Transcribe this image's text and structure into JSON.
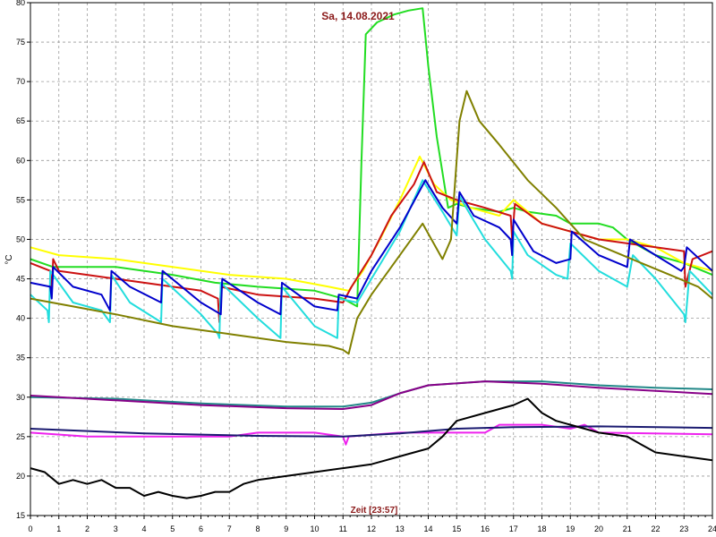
{
  "chart_data": {
    "type": "line",
    "title": "Sa, 14.08.2021",
    "xlabel": "Zeit [23:57]",
    "ylabel": "°C",
    "xlim": [
      0,
      24
    ],
    "ylim": [
      15,
      80
    ],
    "x_ticks": [
      "0",
      "1",
      "2",
      "3",
      "4",
      "5",
      "6",
      "7",
      "8",
      "9",
      "10",
      "11",
      "12",
      "13",
      "14",
      "15",
      "16",
      "17",
      "18",
      "19",
      "20",
      "21",
      "22",
      "23",
      "24"
    ],
    "y_ticks": [
      "15",
      "20",
      "25",
      "30",
      "35",
      "40",
      "45",
      "50",
      "55",
      "60",
      "65",
      "70",
      "75",
      "80"
    ],
    "grid": true,
    "series": [
      {
        "color": "#22dd22",
        "points": [
          [
            0,
            47.5
          ],
          [
            0.8,
            46.5
          ],
          [
            3,
            46.5
          ],
          [
            5,
            45.5
          ],
          [
            6.5,
            44.5
          ],
          [
            8,
            44
          ],
          [
            10,
            43.5
          ],
          [
            11,
            42.5
          ],
          [
            11.5,
            41.5
          ],
          [
            11.65,
            60
          ],
          [
            11.8,
            76
          ],
          [
            12.2,
            77.5
          ],
          [
            12.8,
            78.5
          ],
          [
            13.3,
            79
          ],
          [
            13.8,
            79.3
          ],
          [
            14,
            72
          ],
          [
            14.3,
            63
          ],
          [
            14.7,
            54
          ],
          [
            15,
            54.5
          ],
          [
            15.5,
            54
          ],
          [
            16.5,
            53.5
          ],
          [
            17,
            54
          ],
          [
            17.5,
            53.5
          ],
          [
            18.5,
            53
          ],
          [
            19,
            52
          ],
          [
            20,
            52
          ],
          [
            20.5,
            51.5
          ],
          [
            21,
            50
          ],
          [
            22,
            48
          ],
          [
            23,
            47
          ],
          [
            24,
            45.5
          ]
        ]
      },
      {
        "color": "#ffff00",
        "points": [
          [
            0,
            49
          ],
          [
            1,
            48
          ],
          [
            3,
            47.5
          ],
          [
            5,
            46.5
          ],
          [
            7,
            45.5
          ],
          [
            9,
            45
          ],
          [
            10.5,
            44
          ],
          [
            11.2,
            43.5
          ],
          [
            11.7,
            46
          ],
          [
            12.3,
            50
          ],
          [
            13,
            55
          ],
          [
            13.7,
            60.5
          ],
          [
            14.2,
            57
          ],
          [
            14.8,
            55
          ],
          [
            15.5,
            54
          ],
          [
            16.5,
            53
          ],
          [
            17,
            55
          ],
          [
            18,
            52
          ],
          [
            19,
            51
          ],
          [
            20,
            50
          ],
          [
            21,
            50
          ],
          [
            22,
            49
          ],
          [
            23,
            47
          ],
          [
            24,
            46
          ]
        ]
      },
      {
        "color": "#cc1111",
        "points": [
          [
            0,
            47
          ],
          [
            0.7,
            46
          ],
          [
            0.75,
            43
          ],
          [
            0.8,
            47.5
          ],
          [
            1,
            46
          ],
          [
            2,
            45.5
          ],
          [
            4,
            44.5
          ],
          [
            6,
            43.5
          ],
          [
            6.6,
            42.5
          ],
          [
            6.65,
            39.5
          ],
          [
            6.7,
            44
          ],
          [
            8,
            43
          ],
          [
            10,
            42.5
          ],
          [
            11,
            42
          ],
          [
            11.3,
            44
          ],
          [
            12,
            48
          ],
          [
            12.7,
            53
          ],
          [
            13.5,
            57
          ],
          [
            13.85,
            59.8
          ],
          [
            14.3,
            56
          ],
          [
            15,
            55
          ],
          [
            16,
            54
          ],
          [
            16.9,
            53
          ],
          [
            16.95,
            50
          ],
          [
            17.05,
            54.5
          ],
          [
            18,
            52
          ],
          [
            19,
            51
          ],
          [
            20,
            50
          ],
          [
            21,
            49.5
          ],
          [
            22,
            49
          ],
          [
            23,
            48.5
          ],
          [
            23.05,
            44
          ],
          [
            23.3,
            47.5
          ],
          [
            24,
            48.5
          ]
        ]
      },
      {
        "color": "#22dddd",
        "points": [
          [
            0,
            43
          ],
          [
            0.6,
            41
          ],
          [
            0.65,
            39.5
          ],
          [
            0.7,
            46
          ],
          [
            1.5,
            42
          ],
          [
            2.5,
            41
          ],
          [
            2.8,
            39.5
          ],
          [
            2.85,
            45.5
          ],
          [
            3.5,
            42
          ],
          [
            4.6,
            39.5
          ],
          [
            4.65,
            45
          ],
          [
            6,
            40.5
          ],
          [
            6.6,
            38
          ],
          [
            6.65,
            37.5
          ],
          [
            6.7,
            44.5
          ],
          [
            8,
            40
          ],
          [
            8.8,
            37.5
          ],
          [
            8.85,
            44
          ],
          [
            10,
            39
          ],
          [
            10.8,
            37.5
          ],
          [
            10.85,
            42.5
          ],
          [
            11.5,
            42
          ],
          [
            12,
            45
          ],
          [
            13,
            51
          ],
          [
            13.8,
            57.5
          ],
          [
            14.5,
            53.5
          ],
          [
            15,
            50.5
          ],
          [
            15.1,
            55.5
          ],
          [
            15.5,
            53
          ],
          [
            16,
            50
          ],
          [
            16.9,
            46
          ],
          [
            16.95,
            45
          ],
          [
            17,
            51
          ],
          [
            17.5,
            48
          ],
          [
            18.5,
            45.5
          ],
          [
            18.9,
            45
          ],
          [
            19,
            49.5
          ],
          [
            20,
            46
          ],
          [
            21,
            44
          ],
          [
            21.2,
            48
          ],
          [
            22,
            45
          ],
          [
            23,
            40.5
          ],
          [
            23.05,
            39.5
          ],
          [
            23.2,
            46
          ],
          [
            24,
            43
          ]
        ]
      },
      {
        "color": "#0000cc",
        "points": [
          [
            0,
            44.5
          ],
          [
            0.7,
            44
          ],
          [
            0.75,
            42.5
          ],
          [
            0.8,
            46.5
          ],
          [
            1.5,
            44
          ],
          [
            2.5,
            43
          ],
          [
            2.8,
            41
          ],
          [
            2.85,
            46
          ],
          [
            3.5,
            44
          ],
          [
            4.6,
            42
          ],
          [
            4.65,
            46
          ],
          [
            6,
            42
          ],
          [
            6.7,
            40.5
          ],
          [
            6.75,
            45
          ],
          [
            8,
            42
          ],
          [
            8.8,
            40.5
          ],
          [
            8.85,
            44.5
          ],
          [
            10,
            41.5
          ],
          [
            10.8,
            41
          ],
          [
            10.85,
            43
          ],
          [
            11.5,
            42.5
          ],
          [
            12,
            46
          ],
          [
            13,
            51.5
          ],
          [
            13.9,
            57.5
          ],
          [
            14.5,
            54
          ],
          [
            15,
            52
          ],
          [
            15.1,
            56
          ],
          [
            15.6,
            53
          ],
          [
            16.5,
            51.5
          ],
          [
            16.9,
            50
          ],
          [
            16.95,
            48
          ],
          [
            17,
            52.5
          ],
          [
            17.7,
            48.5
          ],
          [
            18.5,
            47
          ],
          [
            19,
            47.5
          ],
          [
            19.05,
            51
          ],
          [
            20,
            48
          ],
          [
            21,
            46.5
          ],
          [
            21.1,
            50
          ],
          [
            22,
            48
          ],
          [
            22.9,
            46
          ],
          [
            23,
            46.5
          ],
          [
            23.1,
            49
          ],
          [
            24,
            46
          ]
        ]
      },
      {
        "color": "#808000",
        "points": [
          [
            0,
            42.5
          ],
          [
            1.5,
            41.5
          ],
          [
            3,
            40.5
          ],
          [
            5,
            39
          ],
          [
            7,
            38
          ],
          [
            9,
            37
          ],
          [
            10.5,
            36.5
          ],
          [
            11,
            36
          ],
          [
            11.2,
            35.5
          ],
          [
            11.5,
            40
          ],
          [
            12,
            43
          ],
          [
            13,
            48
          ],
          [
            13.8,
            52
          ],
          [
            14.5,
            47.5
          ],
          [
            14.8,
            50
          ],
          [
            15.1,
            65
          ],
          [
            15.35,
            68.8
          ],
          [
            15.8,
            65
          ],
          [
            16.5,
            62
          ],
          [
            17.5,
            57.5
          ],
          [
            18.5,
            54
          ],
          [
            19.5,
            50
          ],
          [
            20.5,
            48.5
          ],
          [
            21.5,
            47
          ],
          [
            22.5,
            45.5
          ],
          [
            23.5,
            44
          ],
          [
            24,
            42.5
          ]
        ]
      },
      {
        "color": "#228888",
        "points": [
          [
            0,
            30
          ],
          [
            3,
            29.8
          ],
          [
            6,
            29.2
          ],
          [
            9,
            28.8
          ],
          [
            11,
            28.8
          ],
          [
            12,
            29.3
          ],
          [
            13,
            30.5
          ],
          [
            14,
            31.5
          ],
          [
            16,
            32
          ],
          [
            18,
            32
          ],
          [
            20,
            31.5
          ],
          [
            22,
            31.2
          ],
          [
            24,
            31
          ]
        ]
      },
      {
        "color": "#880088",
        "points": [
          [
            0,
            30.2
          ],
          [
            3,
            29.6
          ],
          [
            6,
            29
          ],
          [
            9,
            28.6
          ],
          [
            11,
            28.5
          ],
          [
            12,
            29
          ],
          [
            13,
            30.5
          ],
          [
            14,
            31.5
          ],
          [
            16,
            32
          ],
          [
            18,
            31.7
          ],
          [
            20,
            31.2
          ],
          [
            22,
            30.8
          ],
          [
            24,
            30.4
          ]
        ]
      },
      {
        "color": "#ee22ee",
        "points": [
          [
            0,
            25.5
          ],
          [
            2,
            25
          ],
          [
            4,
            25
          ],
          [
            7,
            25
          ],
          [
            8,
            25.5
          ],
          [
            10,
            25.5
          ],
          [
            11,
            25
          ],
          [
            11.1,
            24
          ],
          [
            11.2,
            25
          ],
          [
            13,
            25.5
          ],
          [
            14.5,
            25.5
          ],
          [
            15,
            25.5
          ],
          [
            16,
            25.5
          ],
          [
            16.5,
            26.5
          ],
          [
            18,
            26.5
          ],
          [
            19,
            26
          ],
          [
            19.5,
            26.5
          ],
          [
            20,
            25.5
          ],
          [
            24,
            25.3
          ]
        ]
      },
      {
        "color": "#1a1a70",
        "points": [
          [
            0,
            26
          ],
          [
            4,
            25.4
          ],
          [
            8,
            25.1
          ],
          [
            11,
            25
          ],
          [
            13,
            25.4
          ],
          [
            15,
            26
          ],
          [
            17,
            26.2
          ],
          [
            20,
            26.3
          ],
          [
            24,
            26.1
          ]
        ]
      },
      {
        "color": "#000000",
        "points": [
          [
            0,
            21
          ],
          [
            0.5,
            20.5
          ],
          [
            1,
            19
          ],
          [
            1.5,
            19.5
          ],
          [
            2,
            19
          ],
          [
            2.5,
            19.5
          ],
          [
            3,
            18.5
          ],
          [
            3.5,
            18.5
          ],
          [
            4,
            17.5
          ],
          [
            4.5,
            18
          ],
          [
            5,
            17.5
          ],
          [
            5.5,
            17.2
          ],
          [
            6,
            17.5
          ],
          [
            6.5,
            18
          ],
          [
            7,
            18
          ],
          [
            7.5,
            19
          ],
          [
            8,
            19.5
          ],
          [
            9,
            20
          ],
          [
            10,
            20.5
          ],
          [
            11,
            21
          ],
          [
            12,
            21.5
          ],
          [
            12.5,
            22
          ],
          [
            13,
            22.5
          ],
          [
            13.5,
            23
          ],
          [
            14,
            23.5
          ],
          [
            14.5,
            25
          ],
          [
            15,
            27
          ],
          [
            16,
            28
          ],
          [
            17,
            29
          ],
          [
            17.5,
            29.8
          ],
          [
            18,
            28
          ],
          [
            18.5,
            27
          ],
          [
            19,
            26.5
          ],
          [
            20,
            25.5
          ],
          [
            21,
            25
          ],
          [
            21.5,
            24
          ],
          [
            22,
            23
          ],
          [
            23,
            22.5
          ],
          [
            24,
            22
          ]
        ]
      }
    ]
  }
}
